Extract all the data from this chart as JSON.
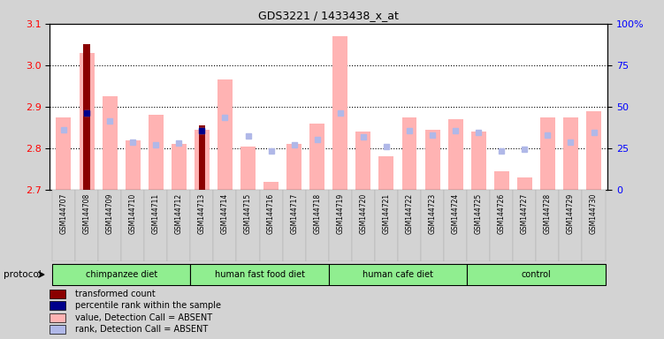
{
  "title": "GDS3221 / 1433438_x_at",
  "samples": [
    "GSM144707",
    "GSM144708",
    "GSM144709",
    "GSM144710",
    "GSM144711",
    "GSM144712",
    "GSM144713",
    "GSM144714",
    "GSM144715",
    "GSM144716",
    "GSM144717",
    "GSM144718",
    "GSM144719",
    "GSM144720",
    "GSM144721",
    "GSM144722",
    "GSM144723",
    "GSM144724",
    "GSM144725",
    "GSM144726",
    "GSM144727",
    "GSM144728",
    "GSM144729",
    "GSM144730"
  ],
  "value_absent": [
    2.875,
    3.03,
    2.925,
    2.82,
    2.88,
    2.81,
    2.845,
    2.965,
    2.805,
    2.72,
    2.81,
    2.86,
    3.07,
    2.84,
    2.78,
    2.875,
    2.845,
    2.87,
    2.84,
    2.745,
    2.73,
    2.875,
    2.875,
    2.89
  ],
  "rank_absent": [
    2.845,
    2.885,
    2.865,
    2.815,
    2.808,
    2.812,
    2.843,
    2.875,
    2.83,
    2.793,
    2.808,
    2.822,
    2.885,
    2.828,
    2.805,
    2.842,
    2.832,
    2.842,
    2.838,
    2.793,
    2.798,
    2.832,
    2.815,
    2.838
  ],
  "transformed_count": [
    null,
    3.05,
    null,
    null,
    null,
    null,
    2.855,
    null,
    null,
    null,
    null,
    null,
    null,
    null,
    null,
    null,
    null,
    null,
    null,
    null,
    null,
    null,
    null,
    null
  ],
  "percentile_rank": [
    null,
    2.885,
    null,
    null,
    null,
    null,
    2.843,
    null,
    null,
    null,
    null,
    null,
    null,
    null,
    null,
    null,
    null,
    null,
    null,
    null,
    null,
    null,
    null,
    null
  ],
  "group_data": [
    {
      "label": "chimpanzee diet",
      "start": 0,
      "end": 5
    },
    {
      "label": "human fast food diet",
      "start": 6,
      "end": 11
    },
    {
      "label": "human cafe diet",
      "start": 12,
      "end": 17
    },
    {
      "label": "control",
      "start": 18,
      "end": 23
    }
  ],
  "ylim_left": [
    2.7,
    3.1
  ],
  "yticks_left": [
    2.7,
    2.8,
    2.9,
    3.0,
    3.1
  ],
  "yticks_right": [
    0,
    25,
    50,
    75,
    100
  ],
  "bar_color_absent_value": "#ffb3b3",
  "bar_color_absent_rank": "#b0b8e8",
  "bar_color_count": "#8b0000",
  "bar_color_rank": "#00008b",
  "group_color": "#90ee90",
  "background_color": "#d3d3d3",
  "plot_bg_color": "#ffffff",
  "tick_bg_color": "#d3d3d3",
  "legend": [
    {
      "color": "#8b0000",
      "label": "transformed count"
    },
    {
      "color": "#00008b",
      "label": "percentile rank within the sample"
    },
    {
      "color": "#ffb3b3",
      "label": "value, Detection Call = ABSENT"
    },
    {
      "color": "#b0b8e8",
      "label": "rank, Detection Call = ABSENT"
    }
  ]
}
